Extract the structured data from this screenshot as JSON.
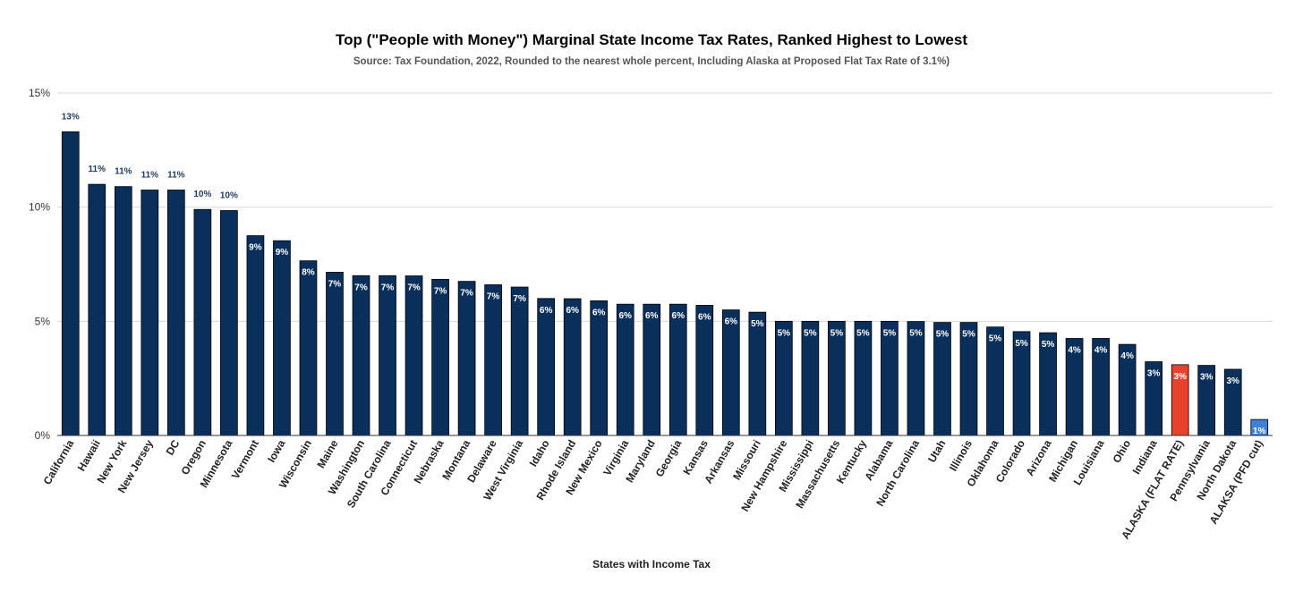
{
  "chart_data": {
    "type": "bar",
    "title": "Top (\"People with Money\") Marginal State Income Tax Rates, Ranked Highest to Lowest",
    "subtitle": "Source: Tax Foundation, 2022, Rounded to the nearest whole percent, Including Alaska at Proposed Flat Tax Rate of 3.1%)",
    "xlabel": "States with Income Tax",
    "ylabel": "",
    "ylim": [
      0,
      15
    ],
    "yticks": [
      0,
      5,
      10,
      15
    ],
    "ytick_labels": [
      "0%",
      "5%",
      "10%",
      "15%"
    ],
    "grid": true,
    "legend": "none",
    "categories": [
      "California",
      "Hawaii",
      "New York",
      "New Jersey",
      "DC",
      "Oregon",
      "Minnesota",
      "Vermont",
      "Iowa",
      "Wisconsin",
      "Maine",
      "Washington",
      "South Carolina",
      "Connecticut",
      "Nebraska",
      "Montana",
      "Delaware",
      "West Virginia",
      "Idaho",
      "Rhode Island",
      "New Mexico",
      "Virginia",
      "Maryland",
      "Georgia",
      "Kansas",
      "Arkansas",
      "Missouri",
      "New Hampshire",
      "Mississippi",
      "Massachusetts",
      "Kentucky",
      "Alabama",
      "North Carolina",
      "Utah",
      "Illinois",
      "Oklahoma",
      "Colorado",
      "Arizona",
      "Michigan",
      "Louisiana",
      "Ohio",
      "Indiana",
      "ALASKA (FLAT RATE)",
      "Pennsylvania",
      "North Dakota",
      "ALAKSA (PFD cut)"
    ],
    "values": [
      13.3,
      11.0,
      10.9,
      10.75,
      10.75,
      9.9,
      9.85,
      8.75,
      8.53,
      7.65,
      7.15,
      7.0,
      7.0,
      6.99,
      6.84,
      6.75,
      6.6,
      6.5,
      6.0,
      5.99,
      5.9,
      5.75,
      5.75,
      5.75,
      5.7,
      5.5,
      5.4,
      5.0,
      5.0,
      5.0,
      5.0,
      5.0,
      4.99,
      4.95,
      4.95,
      4.75,
      4.55,
      4.5,
      4.25,
      4.25,
      3.99,
      3.23,
      3.1,
      3.07,
      2.9,
      0.7
    ],
    "data_labels": [
      "13%",
      "11%",
      "11%",
      "11%",
      "11%",
      "10%",
      "10%",
      "9%",
      "9%",
      "8%",
      "7%",
      "7%",
      "7%",
      "7%",
      "7%",
      "7%",
      "7%",
      "7%",
      "6%",
      "6%",
      "6%",
      "6%",
      "6%",
      "6%",
      "6%",
      "6%",
      "5%",
      "5%",
      "5%",
      "5%",
      "5%",
      "5%",
      "5%",
      "5%",
      "5%",
      "5%",
      "5%",
      "5%",
      "4%",
      "4%",
      "4%",
      "3%",
      "3%",
      "3%",
      "3%",
      "1%"
    ],
    "colors": {
      "default": "#0b2f5b",
      "highlight_flat": "#e8412c",
      "highlight_pfd": "#3f7fd6",
      "grid": "#d9d9d9",
      "axis": "#333333"
    },
    "highlight": {
      "ALASKA (FLAT RATE)": "#e8412c",
      "ALAKSA (PFD cut)": "#3f7fd6"
    }
  }
}
